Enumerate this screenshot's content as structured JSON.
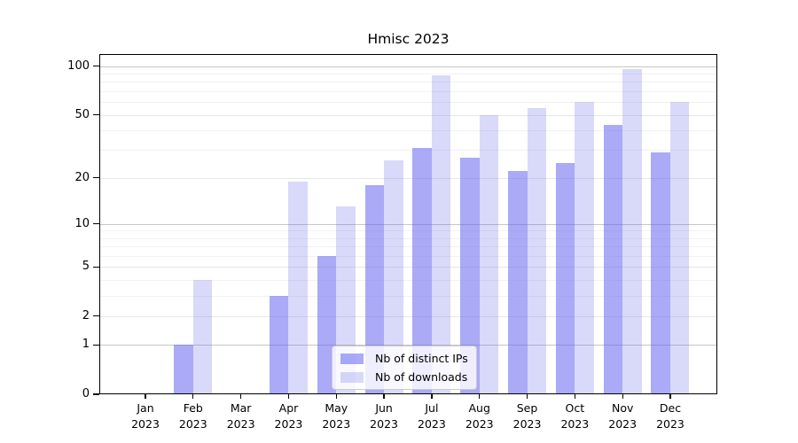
{
  "figure": {
    "background": "#ffffff"
  },
  "chart_data": {
    "type": "bar",
    "title": "Hmisc 2023",
    "x": {
      "categories": [
        "Jan",
        "Feb",
        "Mar",
        "Apr",
        "May",
        "Jun",
        "Jul",
        "Aug",
        "Sep",
        "Oct",
        "Nov",
        "Dec"
      ],
      "year_label": "2023"
    },
    "series": [
      {
        "name": "Nb of distinct IPs",
        "color": "rgba(100,100,240,0.55)",
        "solid_color": "#aaaaf7",
        "values": [
          0,
          1,
          0,
          3,
          6,
          18,
          31,
          27,
          22,
          25,
          43,
          29
        ]
      },
      {
        "name": "Nb of downloads",
        "color": "rgba(103,103,232,0.25)",
        "solid_color": "#d9d9f9",
        "values": [
          0,
          4,
          0,
          19,
          13,
          26,
          88,
          50,
          55,
          60,
          96,
          60
        ]
      }
    ],
    "y_axis": {
      "scale": "log10(value+1)",
      "ticks": [
        0,
        1,
        2,
        5,
        10,
        20,
        50,
        100
      ],
      "minor_gridlines": [
        3,
        4,
        6,
        7,
        8,
        9,
        30,
        40,
        60,
        70,
        80,
        90
      ],
      "strong_gridlines": [
        1,
        10,
        100
      ],
      "range": [
        0,
        119
      ]
    },
    "legend_position": "lower center",
    "grid": true
  }
}
